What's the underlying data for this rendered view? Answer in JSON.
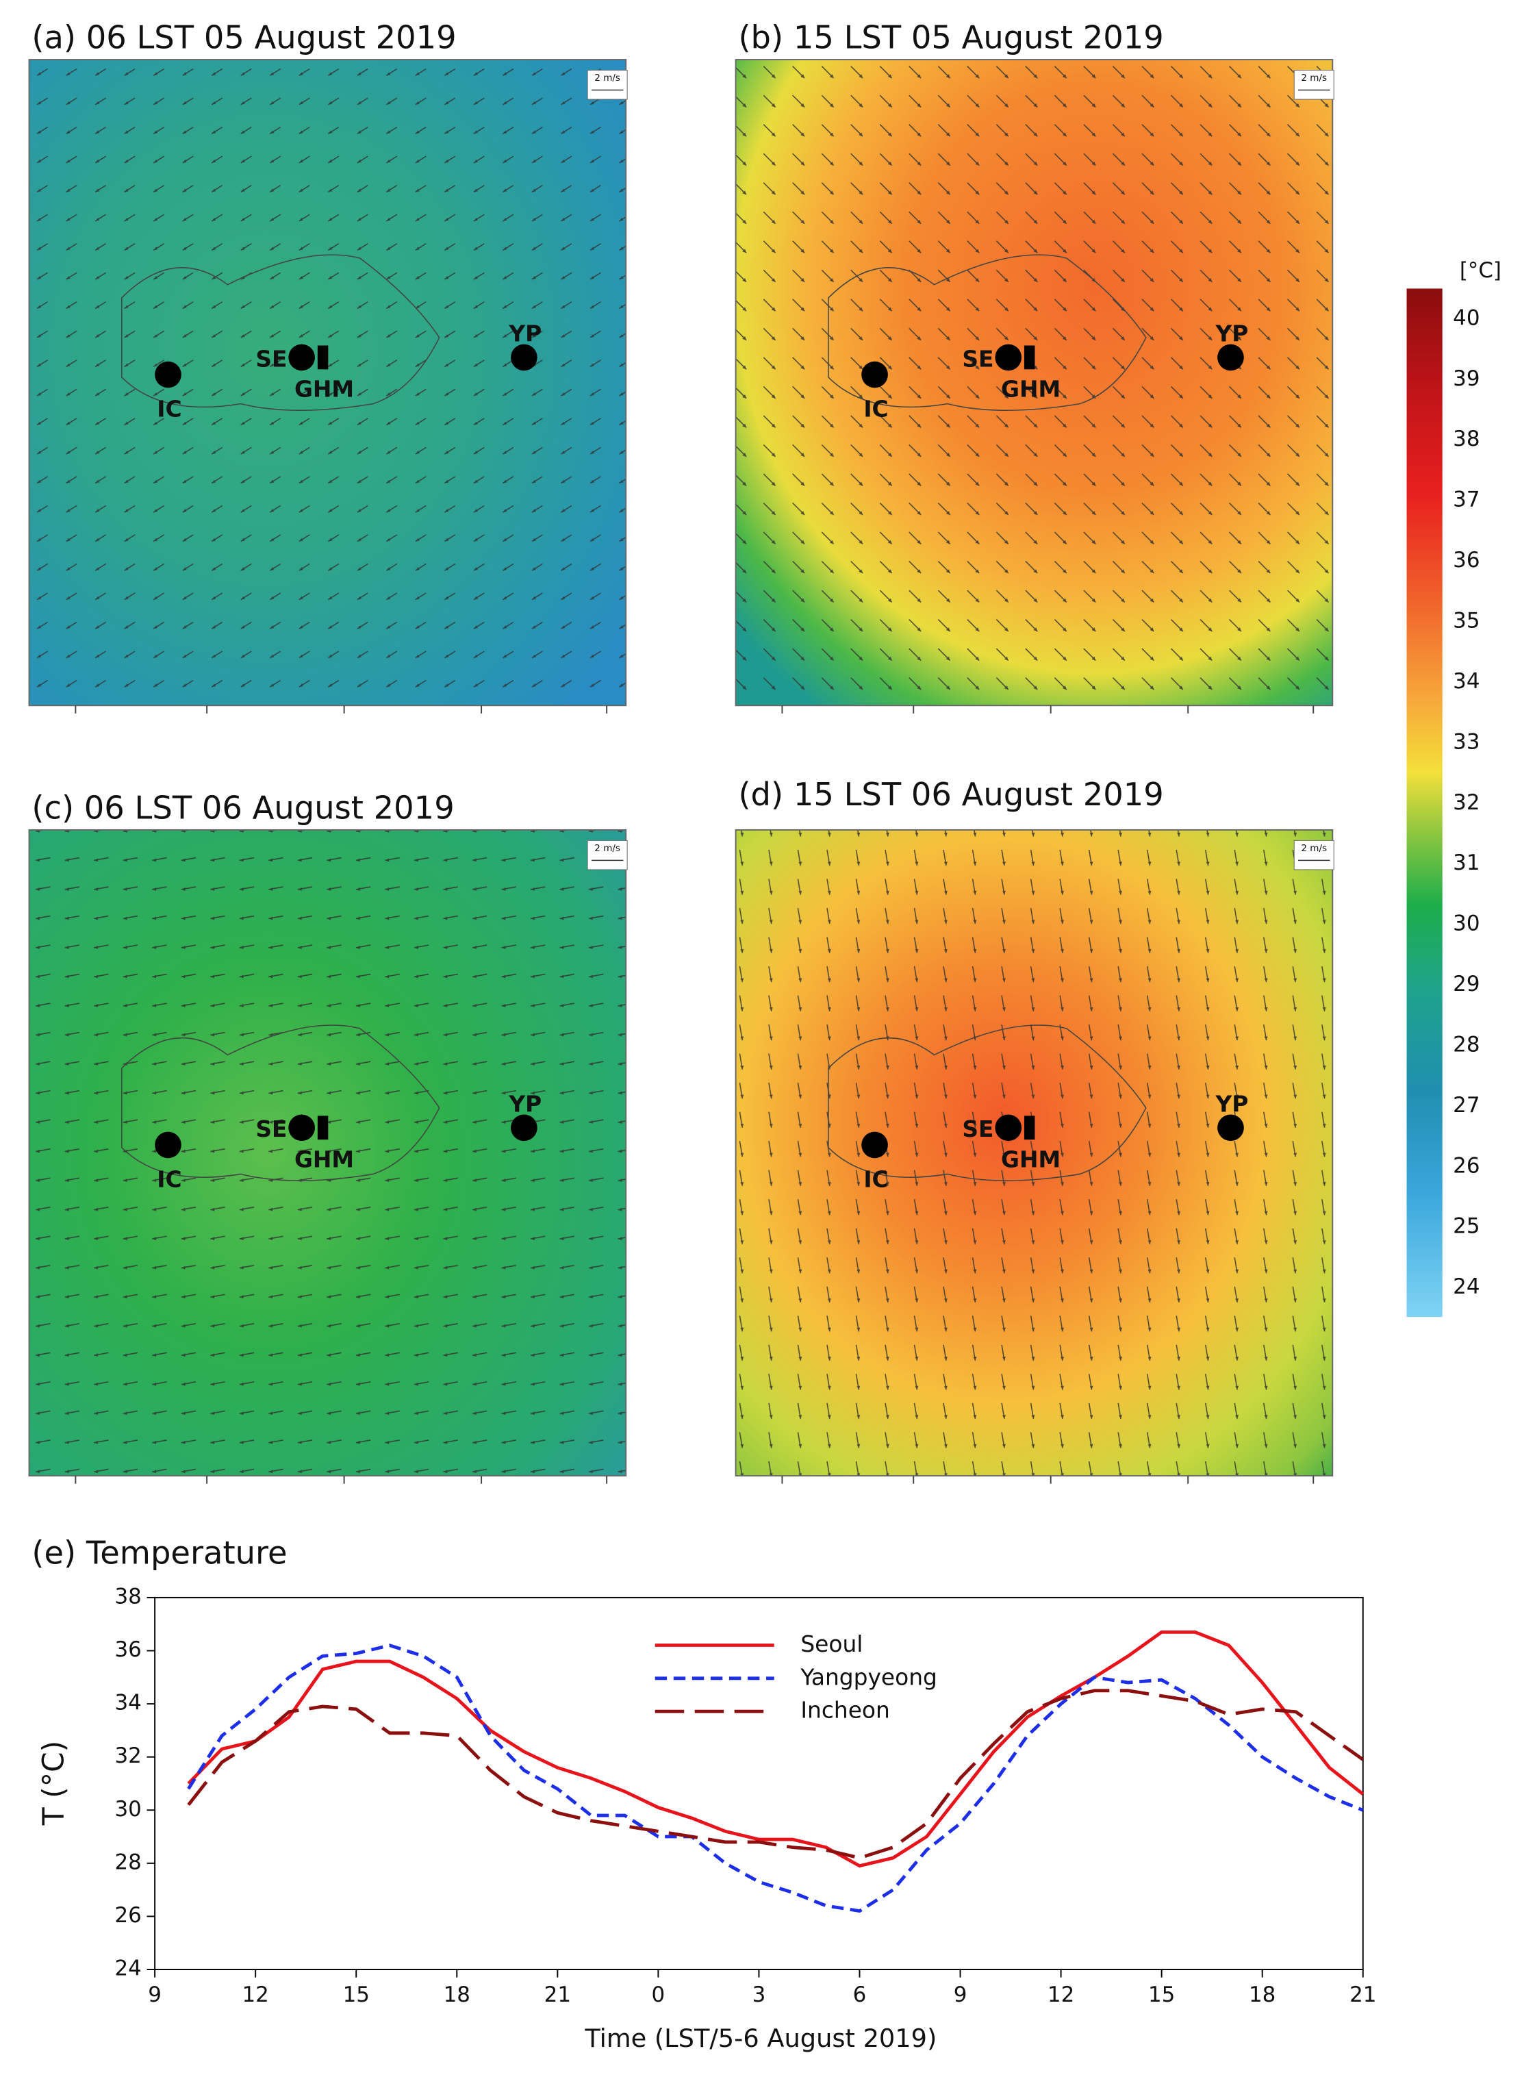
{
  "maps": [
    {
      "title": "(a) 06 LST 05 August 2019"
    },
    {
      "title": "(b) 15 LST 05 August 2019"
    },
    {
      "title": "(c) 06 LST 06 August 2019"
    },
    {
      "title": "(d) 15 LST 06 August 2019"
    }
  ],
  "wind_scale": "2 m/s",
  "stations": [
    "IC",
    "SE",
    "GHM",
    "YP"
  ],
  "colorbar": {
    "label": "[°C]",
    "ticks": [
      24,
      25,
      26,
      27,
      28,
      29,
      30,
      31,
      32,
      33,
      34,
      35,
      36,
      37,
      38,
      39,
      40
    ]
  },
  "chart_data": {
    "type": "line",
    "title": "(e) Temperature",
    "xlabel": "Time (LST/5-6 August 2019)",
    "ylabel": "T (°C)",
    "xlim": [
      9,
      45
    ],
    "ylim": [
      24,
      38
    ],
    "xticks": [
      9,
      12,
      15,
      18,
      21,
      {
        "value": 24,
        "label": "0"
      },
      {
        "value": 27,
        "label": "3"
      },
      {
        "value": 30,
        "label": "6"
      },
      {
        "value": 33,
        "label": "9"
      },
      {
        "value": 36,
        "label": "12"
      },
      {
        "value": 39,
        "label": "15"
      },
      {
        "value": 42,
        "label": "18"
      },
      {
        "value": 45,
        "label": "21"
      }
    ],
    "yticks": [
      24,
      26,
      28,
      30,
      32,
      34,
      36,
      38
    ],
    "x": [
      10,
      11,
      12,
      13,
      14,
      15,
      16,
      17,
      18,
      19,
      20,
      21,
      22,
      23,
      24,
      25,
      26,
      27,
      28,
      29,
      30,
      31,
      32,
      33,
      34,
      35,
      36,
      37,
      38,
      39,
      40,
      41,
      42,
      43,
      44,
      45
    ],
    "series": [
      {
        "name": "Seoul",
        "color": "#e8141c",
        "linestyle": "solid",
        "values": [
          31,
          32.3,
          32.6,
          33.5,
          35.3,
          35.6,
          35.6,
          35,
          34.2,
          33,
          32.2,
          31.6,
          31.2,
          30.7,
          30.1,
          29.7,
          29.2,
          28.9,
          28.9,
          28.6,
          27.9,
          28.2,
          29,
          30.6,
          32.2,
          33.5,
          34.3,
          35,
          35.8,
          36.7,
          36.7,
          36.2,
          34.8,
          33.2,
          31.6,
          30.6
        ]
      },
      {
        "name": "Yangpyeong",
        "color": "#1c2ee8",
        "linestyle": "dashed",
        "values": [
          30.8,
          32.8,
          33.8,
          35,
          35.8,
          35.9,
          36.2,
          35.8,
          35,
          32.8,
          31.5,
          30.8,
          29.8,
          29.8,
          29,
          29,
          28,
          27.3,
          26.9,
          26.4,
          26.2,
          27,
          28.5,
          29.5,
          31,
          32.8,
          34,
          35,
          34.8,
          34.9,
          34.2,
          33.2,
          32,
          31.2,
          30.5,
          30
        ]
      },
      {
        "name": "Incheon",
        "color": "#8b0f0f",
        "linestyle": "longdash",
        "values": [
          30.2,
          31.8,
          32.6,
          33.7,
          33.9,
          33.8,
          32.9,
          32.9,
          32.8,
          31.5,
          30.5,
          29.9,
          29.6,
          29.4,
          29.2,
          29,
          28.8,
          28.8,
          28.6,
          28.5,
          28.2,
          28.6,
          29.5,
          31.2,
          32.5,
          33.7,
          34.2,
          34.5,
          34.5,
          34.3,
          34.1,
          33.6,
          33.8,
          33.7,
          32.8,
          31.9
        ]
      }
    ]
  }
}
